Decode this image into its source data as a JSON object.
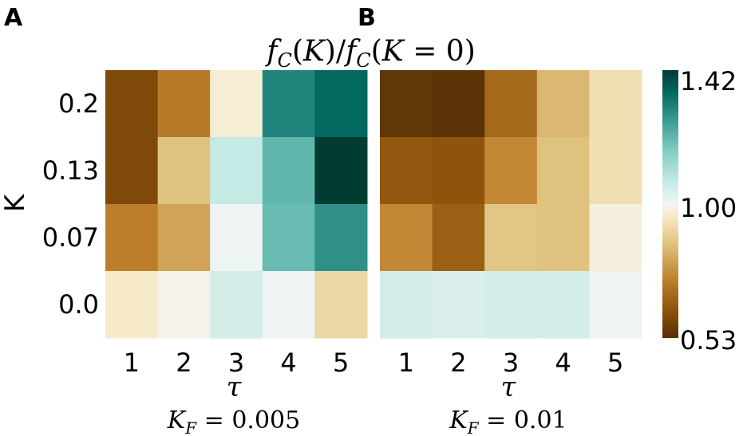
{
  "chart_data": {
    "type": "heatmap",
    "title": "f_C(K)/f_C(K = 0)",
    "ylabel": "K",
    "colorbar": {
      "min": 0.53,
      "max": 1.42,
      "center": 1.0,
      "ticks": [
        "1.42",
        "1.00",
        "0.53"
      ],
      "colormap": "BrBG"
    },
    "panels": [
      {
        "letter": "A",
        "xlabel": "τ",
        "subtitle": "K_F = 0.005",
        "x": [
          1,
          2,
          3,
          4,
          5
        ],
        "y": [
          "0.2",
          "0.13",
          "0.07",
          "0.0"
        ],
        "values": [
          [
            0.6,
            0.72,
            0.97,
            1.3,
            1.35
          ],
          [
            0.6,
            0.86,
            1.07,
            1.21,
            1.42
          ],
          [
            0.73,
            0.8,
            1.01,
            1.2,
            1.28
          ],
          [
            0.96,
            0.99,
            1.05,
            1.01,
            0.91
          ]
        ]
      },
      {
        "letter": "B",
        "xlabel": "τ",
        "subtitle": "K_F = 0.01",
        "x": [
          1,
          2,
          3,
          4,
          5
        ],
        "y": [
          "0.2",
          "0.13",
          "0.07",
          "0.0"
        ],
        "values": [
          [
            0.55,
            0.54,
            0.68,
            0.84,
            0.93
          ],
          [
            0.64,
            0.63,
            0.75,
            0.86,
            0.93
          ],
          [
            0.75,
            0.66,
            0.87,
            0.86,
            0.98
          ],
          [
            1.05,
            1.04,
            1.05,
            1.05,
            1.01
          ]
        ]
      }
    ]
  }
}
